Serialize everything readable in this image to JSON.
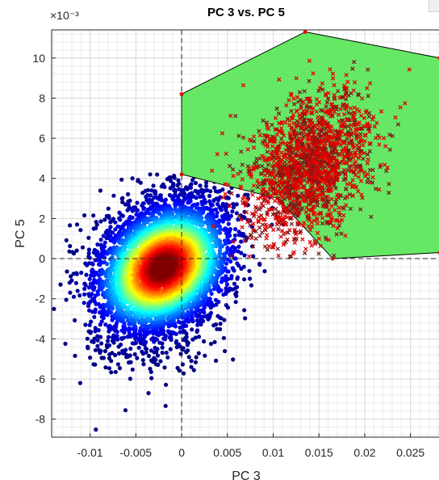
{
  "chart_data": {
    "type": "scatter",
    "title": "PC 3 vs. PC 5",
    "xlabel": "PC 3",
    "ylabel": "PC 5",
    "y_exponent_label": "×10⁻³",
    "xlim": [
      -0.0142,
      0.0282
    ],
    "ylim": [
      -8.9,
      11.4
    ],
    "xticks": [
      -0.01,
      -0.005,
      0,
      0.005,
      0.01,
      0.015,
      0.02,
      0.025
    ],
    "xtick_labels": [
      "-0.01",
      "-0.005",
      "0",
      "0.005",
      "0.01",
      "0.015",
      "0.02",
      "0.025"
    ],
    "yticks": [
      -8,
      -6,
      -4,
      -2,
      0,
      2,
      4,
      6,
      8,
      10
    ],
    "ytick_labels": [
      "-8",
      "-6",
      "-4",
      "-2",
      "0",
      "2",
      "4",
      "6",
      "8",
      "10"
    ],
    "grid": true,
    "minor_grid": true,
    "reference_lines": {
      "x": 0,
      "y": 0,
      "style": "dashed"
    },
    "series": [
      {
        "kind": "density-scatter",
        "marker": "dot",
        "colormap": "jet",
        "center": [
          -0.002,
          -0.2
        ],
        "spread": [
          0.0055,
          2.2
        ],
        "x_range": [
          -0.0142,
          0.0175
        ],
        "y_range": [
          -8.8,
          4.2
        ]
      },
      {
        "kind": "scatter",
        "marker": "x",
        "color": "#e00000",
        "center": [
          0.014,
          4.6
        ],
        "spread": [
          0.0045,
          2.1
        ],
        "x_range": [
          0.001,
          0.0255
        ],
        "y_range": [
          -0.2,
          10.0
        ]
      }
    ],
    "hull": {
      "fill": "#66e866",
      "edge": "#000000",
      "vertex_color": "#e01010",
      "vertices": [
        [
          0,
          8.2
        ],
        [
          0.0135,
          11.3
        ],
        [
          0.0282,
          10.0
        ],
        [
          0.0282,
          0.3
        ],
        [
          0.0165,
          0.0
        ],
        [
          0.0105,
          3.0
        ],
        [
          0,
          4.2
        ]
      ]
    }
  }
}
